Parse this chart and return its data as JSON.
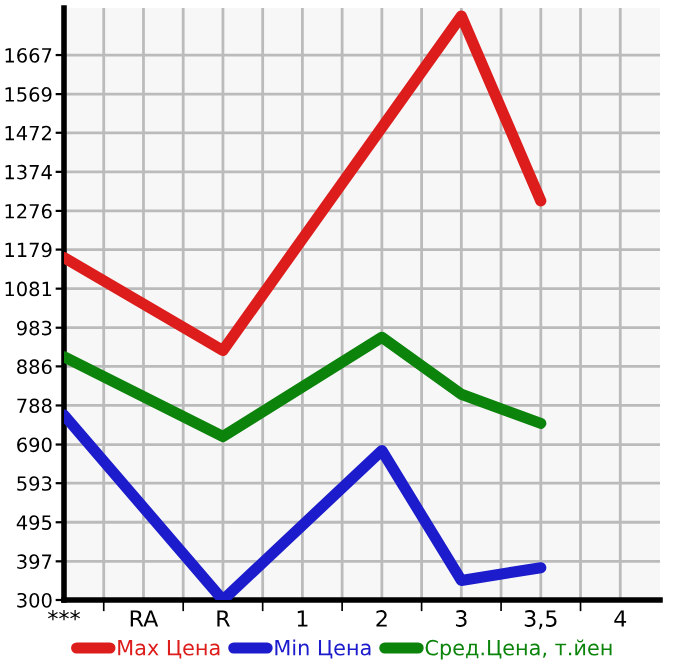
{
  "chart_data": {
    "type": "line",
    "categories": [
      "***",
      "RA",
      "R",
      "1",
      "2",
      "3",
      "3,5",
      "4"
    ],
    "series": [
      {
        "name": "Max Цена",
        "color": "#dd1c1c",
        "values": [
          1159,
          null,
          926,
          null,
          null,
          1765,
          1301,
          null
        ]
      },
      {
        "name": "Min Цена",
        "color": "#1c1ccc",
        "values": [
          764,
          null,
          300,
          null,
          675,
          349,
          381,
          null
        ]
      },
      {
        "name": "Сред.Цена, т.йен",
        "color": "#0c840c",
        "values": [
          910,
          null,
          710,
          null,
          959,
          816,
          743,
          null
        ]
      }
    ],
    "ylim": [
      300,
      1785
    ],
    "yticks": [
      300,
      397,
      495,
      593,
      690,
      788,
      886,
      983,
      1081,
      1179,
      1276,
      1374,
      1472,
      1569,
      1667
    ],
    "grid": true,
    "legend": "bottom",
    "marker": "none",
    "line_style": "solid"
  }
}
